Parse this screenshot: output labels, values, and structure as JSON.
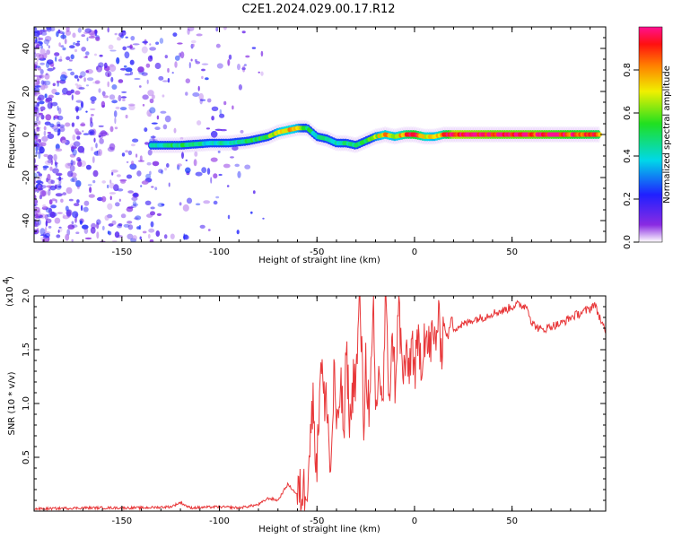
{
  "title": "C2E1.2024.029.00.17.R12",
  "chart_data": [
    {
      "type": "heatmap",
      "xlabel": "Height of straight line (km)",
      "ylabel": "Frequency (Hz)",
      "xlim": [
        -195,
        98
      ],
      "ylim": [
        -50,
        50
      ],
      "xticks": [
        -150,
        -100,
        -50,
        0,
        50
      ],
      "yticks": [
        -40,
        -20,
        0,
        20,
        40
      ],
      "colorbar": {
        "label": "Normalized spectral amplitude",
        "range": [
          0,
          1
        ],
        "ticks": [
          0.0,
          0.2,
          0.4,
          0.6,
          0.8
        ],
        "colormap": "rainbow"
      },
      "ridge_x": [
        -135,
        -120,
        -105,
        -95,
        -85,
        -75,
        -70,
        -65,
        -60,
        -55,
        -50,
        -45,
        -40,
        -35,
        -30,
        -25,
        -20,
        -15,
        -10,
        -5,
        0,
        5,
        10,
        15,
        20,
        40,
        60,
        80,
        95
      ],
      "ridge_freq": [
        -5,
        -5,
        -4,
        -4,
        -3,
        -1,
        1,
        2,
        3,
        3,
        -1,
        -2,
        -4,
        -4,
        -5,
        -3,
        -1,
        0,
        -1,
        0,
        0,
        -1,
        -1,
        0,
        0,
        0,
        0,
        0,
        0
      ],
      "ridge_amplitude": [
        0.4,
        0.5,
        0.4,
        0.45,
        0.5,
        0.55,
        0.7,
        0.75,
        0.7,
        0.5,
        0.4,
        0.45,
        0.4,
        0.45,
        0.45,
        0.5,
        0.65,
        0.75,
        0.7,
        0.8,
        0.9,
        0.75,
        0.7,
        0.8,
        1.0,
        0.95,
        0.95,
        0.9,
        0.85
      ]
    },
    {
      "type": "line",
      "xlabel": "Height of straight line (km)",
      "ylabel": "SNR (10 * v/v)",
      "y_multiplier": "(x10",
      "y_multiplier_exp": "4",
      "xlim": [
        -195,
        98
      ],
      "ylim": [
        0,
        2.0
      ],
      "xticks": [
        -150,
        -100,
        -50,
        0,
        50
      ],
      "yticks": [
        0.5,
        1.0,
        1.5,
        2.0
      ],
      "color": "#e8383a",
      "series": [
        {
          "x": [
            -195,
            -170,
            -140,
            -125,
            -120,
            -115,
            -100,
            -90,
            -80,
            -75,
            -70,
            -65,
            -60,
            -57,
            -55,
            -53,
            -52,
            -50,
            -48,
            -46,
            -45,
            -43,
            -41,
            -40,
            -38,
            -36,
            -35,
            -33,
            -31,
            -30,
            -28,
            -26,
            -25,
            -23,
            -21,
            -20,
            -18,
            -16,
            -15,
            -13,
            -11,
            -10,
            -8,
            -6,
            -5,
            -3,
            -1,
            0,
            2,
            4,
            5,
            7,
            9,
            10,
            12,
            14,
            15,
            17,
            19,
            20,
            23,
            26,
            30,
            35,
            40,
            45,
            50,
            52,
            55,
            58,
            60,
            65,
            70,
            75,
            80,
            85,
            90,
            92,
            95,
            98
          ],
          "y": [
            0.02,
            0.03,
            0.03,
            0.04,
            0.08,
            0.03,
            0.04,
            0.03,
            0.06,
            0.12,
            0.1,
            0.25,
            0.15,
            0.18,
            0.3,
            0.8,
            1.0,
            0.4,
            1.5,
            0.9,
            1.1,
            0.3,
            1.4,
            0.6,
            1.2,
            0.7,
            1.5,
            0.8,
            1.3,
            1.2,
            2.0,
            0.8,
            1.4,
            0.9,
            1.8,
            0.9,
            1.3,
            1.0,
            1.95,
            1.1,
            1.6,
            1.2,
            1.9,
            1.2,
            1.4,
            1.3,
            1.6,
            1.25,
            1.55,
            1.4,
            1.7,
            1.5,
            1.6,
            1.55,
            1.75,
            1.55,
            1.75,
            1.6,
            1.8,
            1.7,
            1.72,
            1.74,
            1.78,
            1.8,
            1.84,
            1.86,
            1.9,
            1.92,
            1.91,
            1.9,
            1.75,
            1.68,
            1.72,
            1.74,
            1.8,
            1.84,
            1.88,
            1.93,
            1.8,
            1.65
          ]
        }
      ]
    }
  ]
}
